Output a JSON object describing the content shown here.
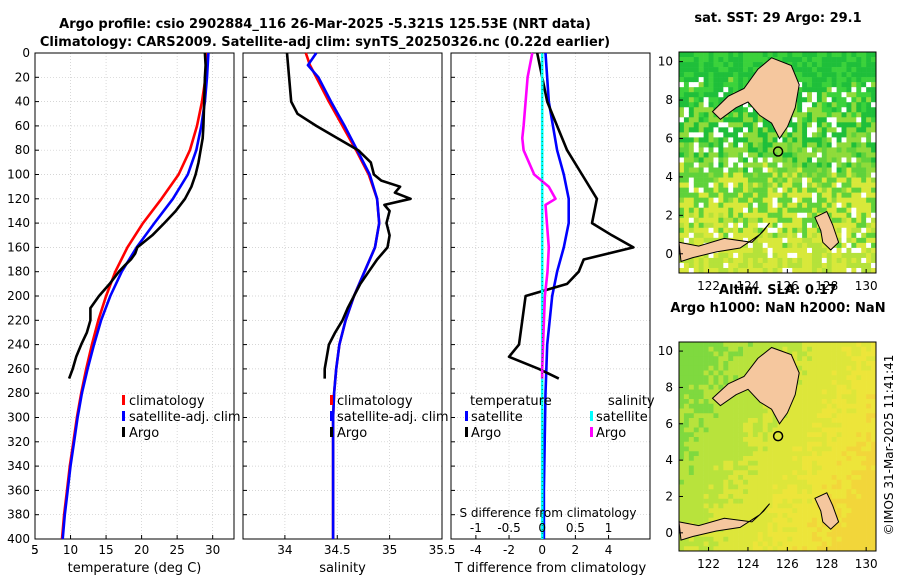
{
  "header": {
    "line1": "Argo profile: csio 2902884_116 26-Mar-2025 -5.321S 125.53E (NRT data)",
    "line2": "Climatology: CARS2009. Satellite-adj clim: synTS_20250326.nc (0.22d earlier)"
  },
  "colors": {
    "climatology": "#ff0000",
    "satellite": "#0000ff",
    "argo": "#000000",
    "sat_temp_diff": "#00ffff",
    "argo_sal_diff": "#ff00ff",
    "land": "#f5c79e"
  },
  "chart_data": [
    {
      "type": "line",
      "id": "temperature",
      "xlabel": "temperature (deg C)",
      "ylabel": "",
      "xlim": [
        5,
        33
      ],
      "ylim": [
        400,
        0
      ],
      "xticks": [
        5,
        10,
        15,
        20,
        25,
        30
      ],
      "yticks": [
        0,
        20,
        40,
        60,
        80,
        100,
        120,
        140,
        160,
        180,
        200,
        220,
        240,
        260,
        280,
        300,
        320,
        340,
        360,
        380,
        400
      ],
      "legend": [
        "climatology",
        "satellite-adj. clim",
        "Argo"
      ],
      "series": [
        {
          "name": "climatology",
          "depth": [
            0,
            20,
            40,
            60,
            80,
            100,
            120,
            140,
            160,
            180,
            200,
            220,
            240,
            260,
            280,
            300,
            320,
            340,
            360,
            380,
            400
          ],
          "values": [
            29.2,
            29.0,
            28.5,
            27.8,
            26.8,
            25.2,
            22.8,
            20.2,
            18.0,
            16.3,
            15.0,
            13.9,
            13.0,
            12.2,
            11.5,
            10.9,
            10.4,
            9.9,
            9.5,
            9.1,
            8.8
          ]
        },
        {
          "name": "satellite-adj. clim",
          "depth": [
            0,
            20,
            40,
            60,
            80,
            100,
            120,
            140,
            160,
            180,
            200,
            220,
            240,
            260,
            280,
            300,
            320,
            340,
            360,
            380,
            400
          ],
          "values": [
            29.4,
            29.2,
            28.9,
            28.4,
            27.7,
            26.5,
            24.4,
            21.8,
            19.3,
            17.2,
            15.6,
            14.3,
            13.3,
            12.4,
            11.6,
            11.0,
            10.5,
            10.0,
            9.6,
            9.2,
            8.9
          ]
        },
        {
          "name": "Argo",
          "depth": [
            0,
            10,
            20,
            40,
            60,
            70,
            80,
            90,
            100,
            110,
            120,
            130,
            140,
            150,
            160,
            165,
            170,
            175,
            180,
            190,
            200,
            210,
            220,
            230,
            240,
            250,
            260,
            268
          ],
          "values": [
            28.9,
            29.0,
            28.9,
            28.8,
            28.7,
            28.6,
            28.3,
            28.0,
            27.6,
            27.0,
            26.1,
            24.8,
            23.2,
            21.5,
            19.4,
            19.1,
            18.5,
            17.6,
            16.8,
            15.5,
            14.0,
            12.8,
            12.8,
            12.3,
            11.5,
            10.8,
            10.3,
            9.8
          ]
        }
      ]
    },
    {
      "type": "line",
      "id": "salinity",
      "xlabel": "salinity",
      "xlim": [
        33.6,
        35.5
      ],
      "ylim": [
        400,
        0
      ],
      "xticks": [
        34,
        34.5,
        35,
        35.5
      ],
      "legend": [
        "climatology",
        "satellite-adj. clim",
        "Argo"
      ],
      "series": [
        {
          "name": "climatology",
          "depth": [
            0,
            10,
            20,
            40,
            60,
            80,
            100,
            120,
            140,
            160,
            180,
            200,
            220,
            240,
            260,
            280,
            300,
            320,
            340,
            360,
            380,
            400
          ],
          "values": [
            34.2,
            34.24,
            34.3,
            34.42,
            34.55,
            34.68,
            34.8,
            34.88,
            34.9,
            34.86,
            34.76,
            34.66,
            34.58,
            34.52,
            34.49,
            34.47,
            34.46,
            34.46,
            34.46,
            34.46,
            34.46,
            34.46
          ]
        },
        {
          "name": "satellite-adj. clim",
          "depth": [
            0,
            10,
            20,
            40,
            60,
            80,
            100,
            120,
            140,
            160,
            180,
            200,
            220,
            240,
            260,
            280,
            300,
            320,
            340,
            360,
            380,
            400
          ],
          "values": [
            34.3,
            34.22,
            34.32,
            34.44,
            34.57,
            34.69,
            34.81,
            34.88,
            34.9,
            34.86,
            34.76,
            34.66,
            34.58,
            34.52,
            34.49,
            34.47,
            34.46,
            34.46,
            34.46,
            34.46,
            34.46,
            34.46
          ]
        },
        {
          "name": "Argo",
          "depth": [
            0,
            20,
            40,
            50,
            60,
            70,
            80,
            90,
            100,
            105,
            110,
            115,
            120,
            125,
            130,
            140,
            150,
            160,
            170,
            180,
            190,
            200,
            210,
            220,
            230,
            240,
            250,
            260,
            268
          ],
          "values": [
            34.02,
            34.04,
            34.06,
            34.12,
            34.3,
            34.5,
            34.7,
            34.82,
            34.85,
            34.92,
            35.1,
            35.05,
            35.2,
            34.95,
            35.0,
            34.97,
            35.0,
            34.98,
            34.88,
            34.8,
            34.72,
            34.66,
            34.6,
            34.55,
            34.48,
            34.42,
            34.4,
            34.38,
            34.38
          ]
        }
      ]
    },
    {
      "type": "line",
      "id": "difference",
      "xlabel": "T difference from climatology",
      "top_axis_label": "S difference from climatology",
      "xlim": [
        -5.5,
        6.5
      ],
      "ylim": [
        400,
        0
      ],
      "xticks": [
        -4,
        -2,
        0,
        2,
        4
      ],
      "s_xticks": [
        -1,
        -0.5,
        0,
        0.5,
        1
      ],
      "s_xlim": [
        -1.375,
        1.625
      ],
      "legend_headers": [
        "temperature",
        "salinity"
      ],
      "legend": [
        "satellite",
        "Argo",
        "satellite",
        "Argo"
      ],
      "series": [
        {
          "name": "temperature satellite",
          "axis": "T",
          "depth": [
            0,
            40,
            80,
            100,
            120,
            140,
            160,
            180,
            200,
            240,
            280,
            320,
            360,
            400
          ],
          "values": [
            0.2,
            0.4,
            0.9,
            1.3,
            1.6,
            1.6,
            1.3,
            0.9,
            0.6,
            0.3,
            0.2,
            0.15,
            0.1,
            0.1
          ]
        },
        {
          "name": "temperature Argo",
          "axis": "T",
          "depth": [
            0,
            20,
            40,
            60,
            80,
            100,
            120,
            140,
            150,
            160,
            170,
            180,
            190,
            200,
            220,
            240,
            250,
            260,
            268
          ],
          "values": [
            -0.3,
            0.0,
            0.3,
            0.9,
            1.5,
            2.4,
            3.3,
            3.0,
            4.2,
            5.5,
            2.5,
            2.2,
            1.5,
            -1.0,
            -1.2,
            -1.4,
            -2.0,
            -0.2,
            1.0
          ]
        },
        {
          "name": "salinity satellite",
          "axis": "S",
          "depth": [
            0,
            100,
            200,
            300,
            400
          ],
          "values": [
            0.0,
            0.0,
            0.0,
            0.0,
            0.0
          ]
        },
        {
          "name": "salinity Argo",
          "axis": "S",
          "depth": [
            0,
            20,
            40,
            60,
            70,
            80,
            100,
            110,
            120,
            125,
            140,
            160,
            180,
            200,
            230,
            260,
            268
          ],
          "values": [
            -0.15,
            -0.22,
            -0.25,
            -0.28,
            -0.3,
            -0.28,
            -0.12,
            0.1,
            0.2,
            0.05,
            0.07,
            0.1,
            0.08,
            0.04,
            0.02,
            0.0,
            0.0
          ]
        }
      ]
    },
    {
      "type": "heatmap",
      "id": "sst_map",
      "title": "sat. SST: 29 Argo: 29.1",
      "xlim": [
        120.5,
        130.5
      ],
      "ylim": [
        -1,
        10.5
      ],
      "xticks": [
        122,
        124,
        126,
        128,
        130
      ],
      "yticks": [
        0,
        2,
        4,
        6,
        8,
        10
      ],
      "argo_position": [
        125.53,
        5.321
      ]
    },
    {
      "type": "heatmap",
      "id": "sla_map",
      "title_line1": "Altim. SLA: 0.17",
      "title_line2": "Argo h1000: NaN h2000: NaN",
      "xlim": [
        120.5,
        130.5
      ],
      "ylim": [
        -1,
        10.5
      ],
      "xticks": [
        122,
        124,
        126,
        128,
        130
      ],
      "yticks": [
        0,
        2,
        4,
        6,
        8,
        10
      ],
      "argo_position": [
        125.53,
        5.321
      ]
    }
  ],
  "footer": {
    "stamp": "©IMOS 31-Mar-2025 11:41:41"
  }
}
